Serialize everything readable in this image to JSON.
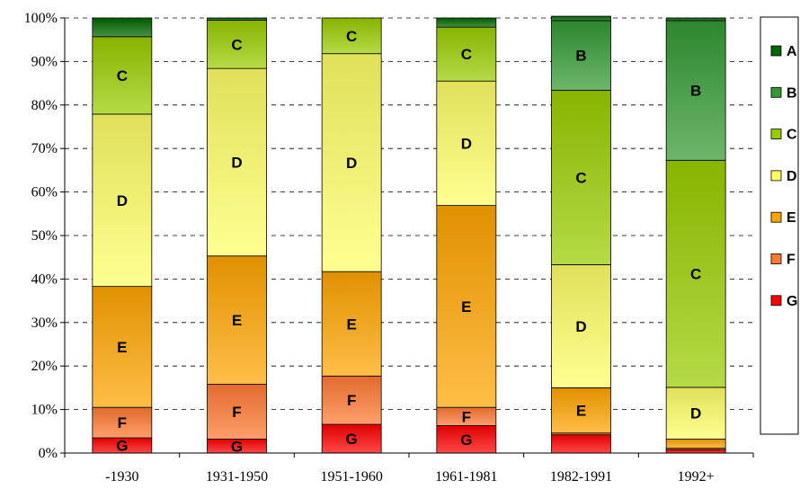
{
  "chart_data": {
    "type": "bar",
    "stacked": true,
    "percent": true,
    "categories": [
      "-1930",
      "1931-1950",
      "1951-1960",
      "1961-1981",
      "1982-1991",
      "1992+"
    ],
    "series": [
      {
        "name": "G",
        "color": "#ff0000",
        "values": [
          3.5,
          3.2,
          6.6,
          6.3,
          4.2,
          0.8
        ]
      },
      {
        "name": "F",
        "color": "#ff7a33",
        "values": [
          7.0,
          12.6,
          11.1,
          4.2,
          0.4,
          0.3
        ]
      },
      {
        "name": "E",
        "color": "#ffa500",
        "values": [
          27.8,
          29.5,
          24.0,
          46.4,
          10.4,
          2.1
        ]
      },
      {
        "name": "D",
        "color": "#ffff66",
        "values": [
          39.6,
          43.1,
          50.1,
          28.6,
          28.3,
          11.9
        ]
      },
      {
        "name": "C",
        "color": "#99cc00",
        "values": [
          17.8,
          11.1,
          8.2,
          12.4,
          40.1,
          52.2
        ]
      },
      {
        "name": "B",
        "color": "#339933",
        "values": [
          0,
          0,
          0,
          0,
          16.0,
          32.1
        ]
      },
      {
        "name": "A",
        "color": "#006600",
        "values": [
          4.3,
          0.5,
          0,
          2.1,
          1.0,
          0.6
        ]
      }
    ],
    "yticks": [
      "0%",
      "10%",
      "20%",
      "30%",
      "40%",
      "50%",
      "60%",
      "70%",
      "80%",
      "90%",
      "100%"
    ],
    "ylim": [
      0,
      100
    ],
    "grid": true,
    "legend": {
      "position": "right",
      "entries": [
        "A",
        "B",
        "C",
        "D",
        "E",
        "F",
        "G"
      ]
    },
    "segment_labels": [
      [
        "G",
        "F",
        "E",
        "D",
        "C",
        "",
        ""
      ],
      [
        "G",
        "F",
        "E",
        "D",
        "C",
        "",
        ""
      ],
      [
        "G",
        "F",
        "E",
        "D",
        "C",
        "",
        ""
      ],
      [
        "G",
        "F",
        "E",
        "D",
        "C",
        "",
        ""
      ],
      [
        "",
        "",
        "E",
        "D",
        "C",
        "B",
        ""
      ],
      [
        "",
        "",
        "",
        "D",
        "C",
        "B",
        ""
      ]
    ]
  }
}
